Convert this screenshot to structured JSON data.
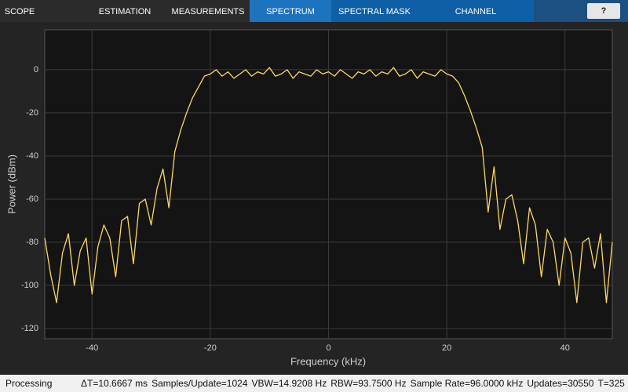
{
  "toolbar": {
    "tabs": [
      "SCOPE",
      "ESTIMATION",
      "MEASUREMENTS",
      "SPECTRUM",
      "SPECTRAL MASK",
      "CHANNEL MEASUREMENTS"
    ],
    "help": "?"
  },
  "status": {
    "state": "Processing",
    "items": [
      "ΔT=10.6667 ms",
      "Samples/Update=1024",
      "VBW=14.9208 Hz",
      "RBW=93.7500 Hz",
      "Sample Rate=96.0000 kHz",
      "Updates=30550",
      "T=325"
    ]
  },
  "chart_data": {
    "type": "line",
    "xlabel": "Frequency (kHz)",
    "ylabel": "Power (dBm)",
    "x": [
      -48,
      -47,
      -46,
      -45,
      -44,
      -43,
      -42,
      -41,
      -40,
      -39,
      -38,
      -37,
      -36,
      -35,
      -34,
      -33,
      -32,
      -31,
      -30,
      -29,
      -28,
      -27,
      -26,
      -25,
      -24,
      -23,
      -22,
      -21,
      -20,
      -19,
      -18,
      -17,
      -16,
      -15,
      -14,
      -13,
      -12,
      -11,
      -10,
      -9,
      -8,
      -7,
      -6,
      -5,
      -4,
      -3,
      -2,
      -1,
      0,
      1,
      2,
      3,
      4,
      5,
      6,
      7,
      8,
      9,
      10,
      11,
      12,
      13,
      14,
      15,
      16,
      17,
      18,
      19,
      20,
      21,
      22,
      23,
      24,
      25,
      26,
      27,
      28,
      29,
      30,
      31,
      32,
      33,
      34,
      35,
      36,
      37,
      38,
      39,
      40,
      41,
      42,
      43,
      44,
      45,
      46,
      47,
      48
    ],
    "series": [
      {
        "color": "#ffd862",
        "values": [
          -78,
          -95,
          -108,
          -85,
          -76,
          -100,
          -84,
          -78,
          -104,
          -82,
          -72,
          -78,
          -96,
          -70,
          -68,
          -90,
          -62,
          -60,
          -72,
          -55,
          -46,
          -64,
          -38,
          -28,
          -20,
          -13,
          -8,
          -3,
          -2,
          0,
          -3,
          -1,
          -4,
          -2,
          0,
          -3,
          -1,
          -2,
          1,
          -3,
          -2,
          0,
          -4,
          -1,
          -2,
          -3,
          0,
          -2,
          -1,
          -3,
          0,
          -2,
          -4,
          -1,
          -2,
          0,
          -3,
          -1,
          -2,
          1,
          -3,
          -2,
          0,
          -4,
          -1,
          -2,
          -3,
          0,
          -2,
          -3,
          -6,
          -12,
          -19,
          -27,
          -36,
          -66,
          -45,
          -74,
          -60,
          -58,
          -70,
          -90,
          -64,
          -72,
          -96,
          -74,
          -80,
          -100,
          -78,
          -85,
          -108,
          -80,
          -78,
          -92,
          -76,
          -108,
          -80
        ]
      }
    ],
    "xlim": [
      -48,
      48
    ],
    "ylim": [
      -124.7,
      18.5
    ],
    "xticks": [
      -40,
      -20,
      0,
      20,
      40
    ],
    "yticks": [
      -120,
      -100,
      -80,
      -60,
      -40,
      -20,
      0
    ],
    "grid": true
  }
}
